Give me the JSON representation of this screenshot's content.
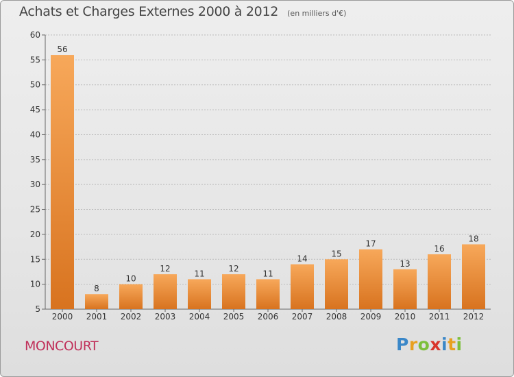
{
  "title": "Achats et Charges Externes 2000 à 2012",
  "subtitle": "(en milliers d'€)",
  "commune": "MONCOURT",
  "logo": {
    "letters": [
      "P",
      "r",
      "o",
      "x",
      "i",
      "t",
      "i"
    ],
    "colors": [
      "#3a87c8",
      "#e8a020",
      "#7cbf3a",
      "#d9342b",
      "#3a87c8",
      "#e8a020",
      "#7cbf3a"
    ]
  },
  "colors": {
    "bar_top": "#f7a85a",
    "bar_bottom": "#d8731f",
    "grid": "#bbbbbb",
    "axis_text": "#333333",
    "title": "#444444",
    "commune": "#c0305a"
  },
  "chart_data": {
    "type": "bar",
    "categories": [
      "2000",
      "2001",
      "2002",
      "2003",
      "2004",
      "2005",
      "2006",
      "2007",
      "2008",
      "2009",
      "2010",
      "2011",
      "2012"
    ],
    "values": [
      56,
      8,
      10,
      12,
      11,
      12,
      11,
      14,
      15,
      17,
      13,
      16,
      18
    ],
    "data_labels": [
      "56",
      "8",
      "10",
      "12",
      "11",
      "12",
      "11",
      "14",
      "15",
      "17",
      "13",
      "16",
      "18"
    ],
    "ylim": [
      5,
      60
    ],
    "yticks": [
      5,
      10,
      15,
      20,
      25,
      30,
      35,
      40,
      45,
      50,
      55,
      60
    ],
    "grid": true,
    "title": "Achats et Charges Externes 2000 à 2012",
    "xlabel": "",
    "ylabel": ""
  }
}
